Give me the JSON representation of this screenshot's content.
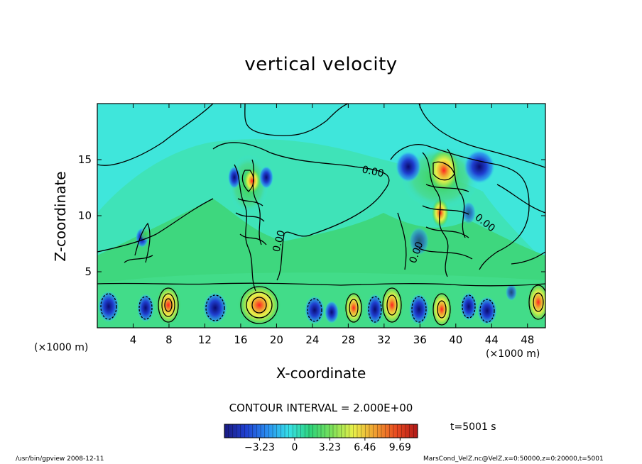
{
  "chart_data": {
    "type": "heatmap",
    "title": "vertical velocity",
    "xlabel": "X-coordinate",
    "ylabel": "Z-coordinate",
    "x_unit_left": "(×1000 m)",
    "x_unit_right": "(×1000 m)",
    "x_ticks": [
      4,
      8,
      12,
      16,
      20,
      24,
      28,
      32,
      36,
      40,
      44,
      48
    ],
    "y_ticks": [
      5,
      10,
      15
    ],
    "xlim": [
      0,
      50
    ],
    "ylim": [
      0,
      20
    ],
    "contour_labels": [
      "0.00",
      "0.00",
      "0.00",
      "0.00"
    ],
    "contour_interval": "CONTOUR INTERVAL = 2.000E+00",
    "colorbar": {
      "ticks": [
        "−3.23",
        "0",
        "3.23",
        "6.46",
        "9.69"
      ],
      "tick_values": [
        -3.23,
        0,
        3.23,
        6.46,
        9.69
      ],
      "range": [
        -6.46,
        11.3
      ],
      "colors": [
        "#1a1a80",
        "#1f3fd0",
        "#2a8ef0",
        "#36e0e8",
        "#2ed37a",
        "#7be05a",
        "#e8f04a",
        "#f0a030",
        "#e84a20",
        "#b01818"
      ]
    },
    "time": "t=5001 s"
  },
  "footer": {
    "left": "/usr/bin/gpview  2008-12-11",
    "right": "MarsCond_VelZ.nc@VelZ,x=0:50000,z=0:20000,t=5001"
  }
}
